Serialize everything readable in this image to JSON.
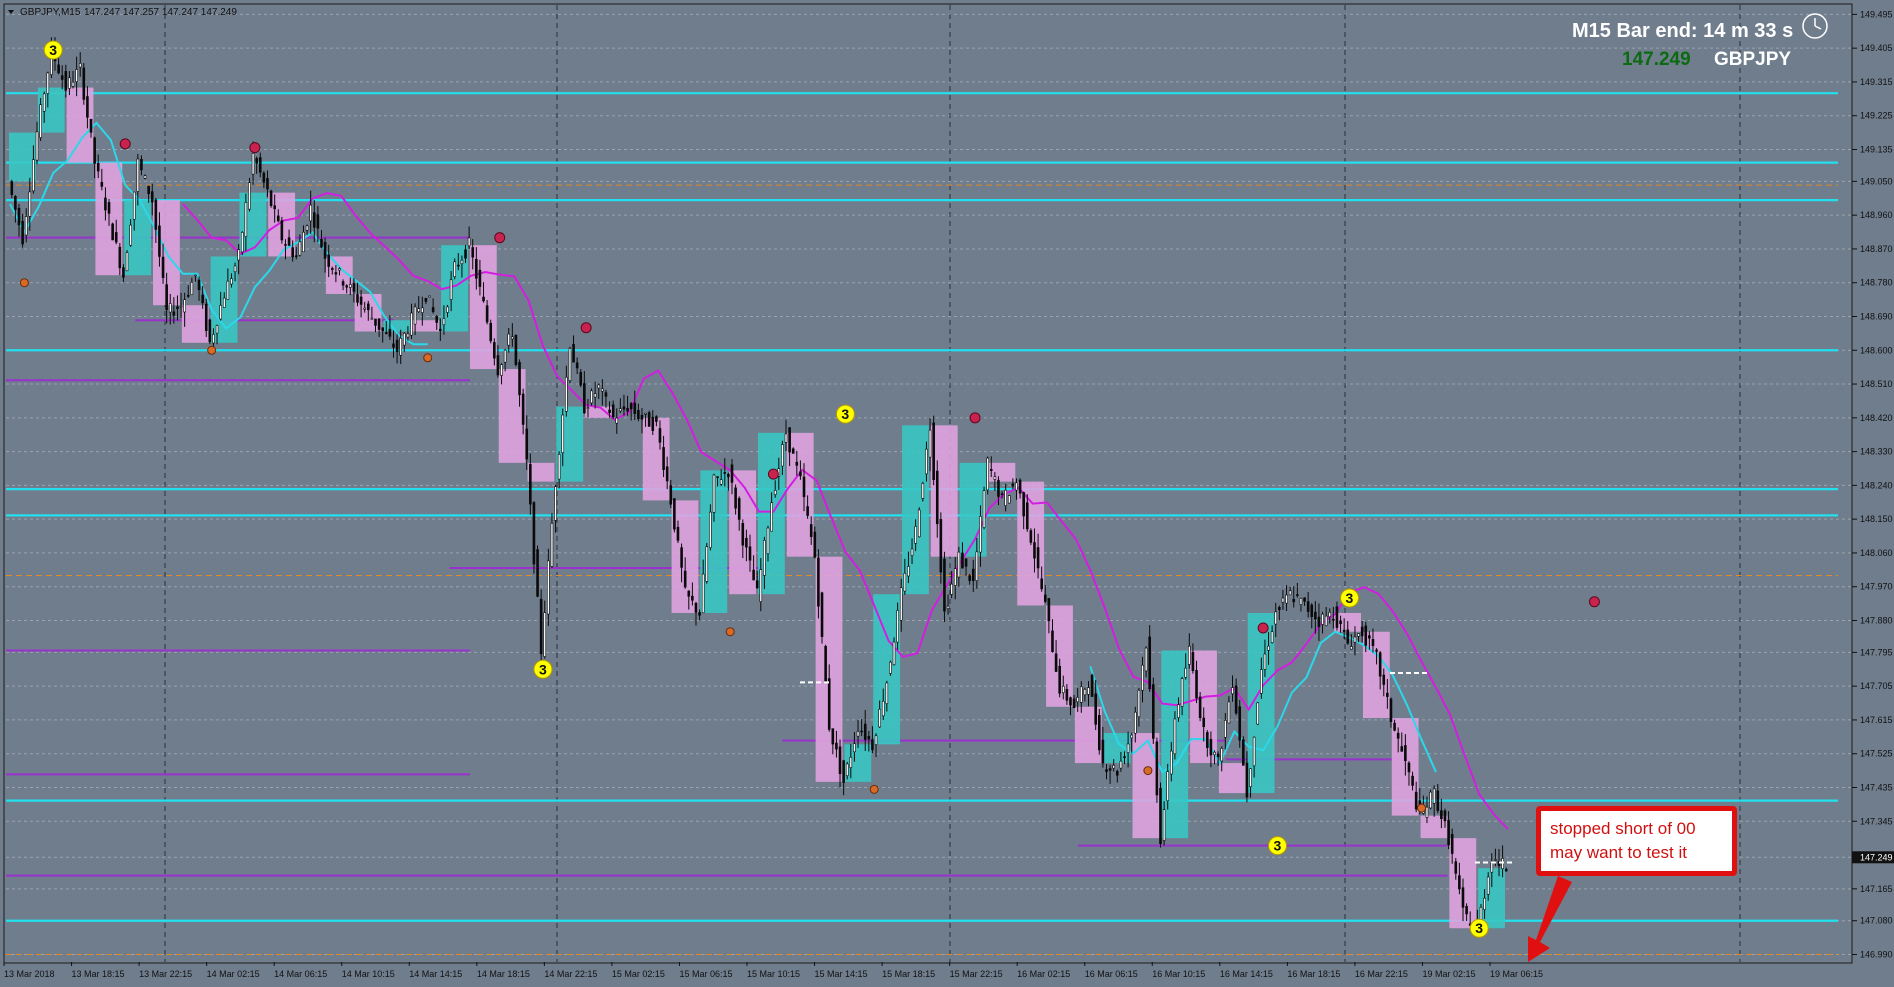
{
  "header": {
    "title": "GBPJPY,M15",
    "ohlc": "147.247 147.257 147.247 147.249"
  },
  "hud": {
    "bar_end": "M15 Bar end: 14 m 33 s",
    "price": "147.249",
    "symbol": "GBPJPY"
  },
  "annotation": {
    "lines": [
      "stopped short of 00",
      "may want to test it"
    ]
  },
  "colors": {
    "background": "#707d8d",
    "grid": "#9aa4b0",
    "cyan_level": "#22e0ee",
    "purple_level": "#9932cc",
    "magenta_ma": "#d21ee0",
    "cyan_ma": "#2ad8ea",
    "bull_box": "#39c6c3",
    "bear_box": "#dfa3df",
    "swing_high": "#c8234f",
    "swing_low": "#d86a28",
    "yellow_marker": "#ffff00",
    "price_green": "#0c6b12",
    "callout_red": "#e01010"
  },
  "chart_data": {
    "type": "candlestick",
    "symbol": "GBPJPY",
    "timeframe": "M15",
    "ylim": [
      146.97,
      149.52
    ],
    "y_ticks": [
      "149.495",
      "149.405",
      "149.315",
      "149.225",
      "149.135",
      "149.050",
      "148.960",
      "148.870",
      "148.780",
      "148.690",
      "148.600",
      "148.510",
      "148.420",
      "148.330",
      "148.240",
      "148.150",
      "148.060",
      "147.970",
      "147.880",
      "147.795",
      "147.705",
      "147.615",
      "147.525",
      "147.435",
      "147.345",
      "147.249",
      "147.165",
      "147.080",
      "146.990"
    ],
    "x_ticks": [
      "13 Mar 2018",
      "13 Mar 18:15",
      "13 Mar 22:15",
      "14 Mar 02:15",
      "14 Mar 06:15",
      "14 Mar 10:15",
      "14 Mar 14:15",
      "14 Mar 18:15",
      "14 Mar 22:15",
      "15 Mar 02:15",
      "15 Mar 06:15",
      "15 Mar 10:15",
      "15 Mar 14:15",
      "15 Mar 18:15",
      "15 Mar 22:15",
      "16 Mar 02:15",
      "16 Mar 06:15",
      "16 Mar 10:15",
      "16 Mar 14:15",
      "16 Mar 18:15",
      "16 Mar 22:15",
      "19 Mar 02:15",
      "19 Mar 06:15"
    ],
    "current_price": 147.249,
    "path": [
      149.05,
      148.9,
      149.18,
      149.4,
      149.3,
      149.35,
      149.1,
      148.95,
      148.8,
      149.1,
      149.0,
      148.7,
      148.72,
      148.8,
      148.62,
      148.75,
      148.85,
      149.12,
      149.02,
      148.9,
      148.85,
      148.98,
      148.85,
      148.8,
      148.75,
      148.7,
      148.65,
      148.6,
      148.68,
      148.75,
      148.65,
      148.82,
      148.88,
      148.72,
      148.55,
      148.65,
      148.3,
      147.8,
      148.25,
      148.62,
      148.45,
      148.5,
      148.42,
      148.45,
      148.42,
      148.4,
      148.2,
      147.95,
      147.9,
      148.25,
      148.28,
      148.1,
      147.95,
      148.2,
      148.38,
      148.25,
      148.05,
      147.6,
      147.45,
      147.6,
      147.55,
      147.72,
      147.95,
      148.12,
      148.4,
      147.9,
      148.05,
      147.98,
      148.3,
      148.2,
      148.25,
      148.1,
      147.92,
      147.7,
      147.65,
      147.72,
      147.5,
      147.48,
      147.58,
      147.82,
      147.3,
      147.62,
      147.8,
      147.58,
      147.5,
      147.72,
      147.42,
      147.75,
      147.9,
      147.95,
      147.92,
      147.88,
      147.9,
      147.82,
      147.85,
      147.78,
      147.62,
      147.5,
      147.36,
      147.42,
      147.3,
      147.1,
      147.06,
      147.25,
      147.22
    ]
  },
  "levels": {
    "cyan": [
      149.285,
      149.1,
      149.0,
      148.6,
      148.23,
      148.16,
      147.4,
      147.08
    ],
    "purple": [
      148.9,
      148.52,
      147.8,
      147.47
    ],
    "purple_short": [
      {
        "price": 148.68,
        "from": 0.07,
        "to": 0.21
      },
      {
        "price": 148.02,
        "from": 0.24,
        "to": 0.41
      },
      {
        "price": 147.56,
        "from": 0.42,
        "to": 0.66
      },
      {
        "price": 147.51,
        "from": 0.66,
        "to": 0.76
      },
      {
        "price": 147.28,
        "from": 0.58,
        "to": 0.78
      },
      {
        "price": 147.2,
        "from": 0.0,
        "to": 0.78
      },
      {
        "price": 148.0,
        "from": 0.4,
        "to": 0.41
      }
    ],
    "orange_dashed": [
      149.04,
      148.0,
      146.99
    ]
  },
  "markers": {
    "yellow_3": [
      {
        "label": "3",
        "bar": 3,
        "price": 149.4
      },
      {
        "label": "3",
        "bar": 37,
        "price": 147.75
      },
      {
        "label": "3",
        "bar": 58,
        "price": 148.43
      },
      {
        "label": "3",
        "bar": 88,
        "price": 147.28
      },
      {
        "label": "3",
        "bar": 93,
        "price": 147.94
      },
      {
        "label": "3",
        "bar": 102,
        "price": 147.06
      }
    ],
    "swing_highs": [
      [
        8,
        149.15
      ],
      [
        17,
        149.14
      ],
      [
        34,
        148.9
      ],
      [
        40,
        148.66
      ],
      [
        53,
        148.27
      ],
      [
        67,
        148.42
      ],
      [
        87,
        147.86
      ],
      [
        110,
        147.93
      ]
    ],
    "swing_lows": [
      [
        1,
        148.78
      ],
      [
        14,
        148.6
      ],
      [
        29,
        148.58
      ],
      [
        50,
        147.85
      ],
      [
        60,
        147.43
      ],
      [
        79,
        147.48
      ],
      [
        98,
        147.38
      ]
    ]
  }
}
